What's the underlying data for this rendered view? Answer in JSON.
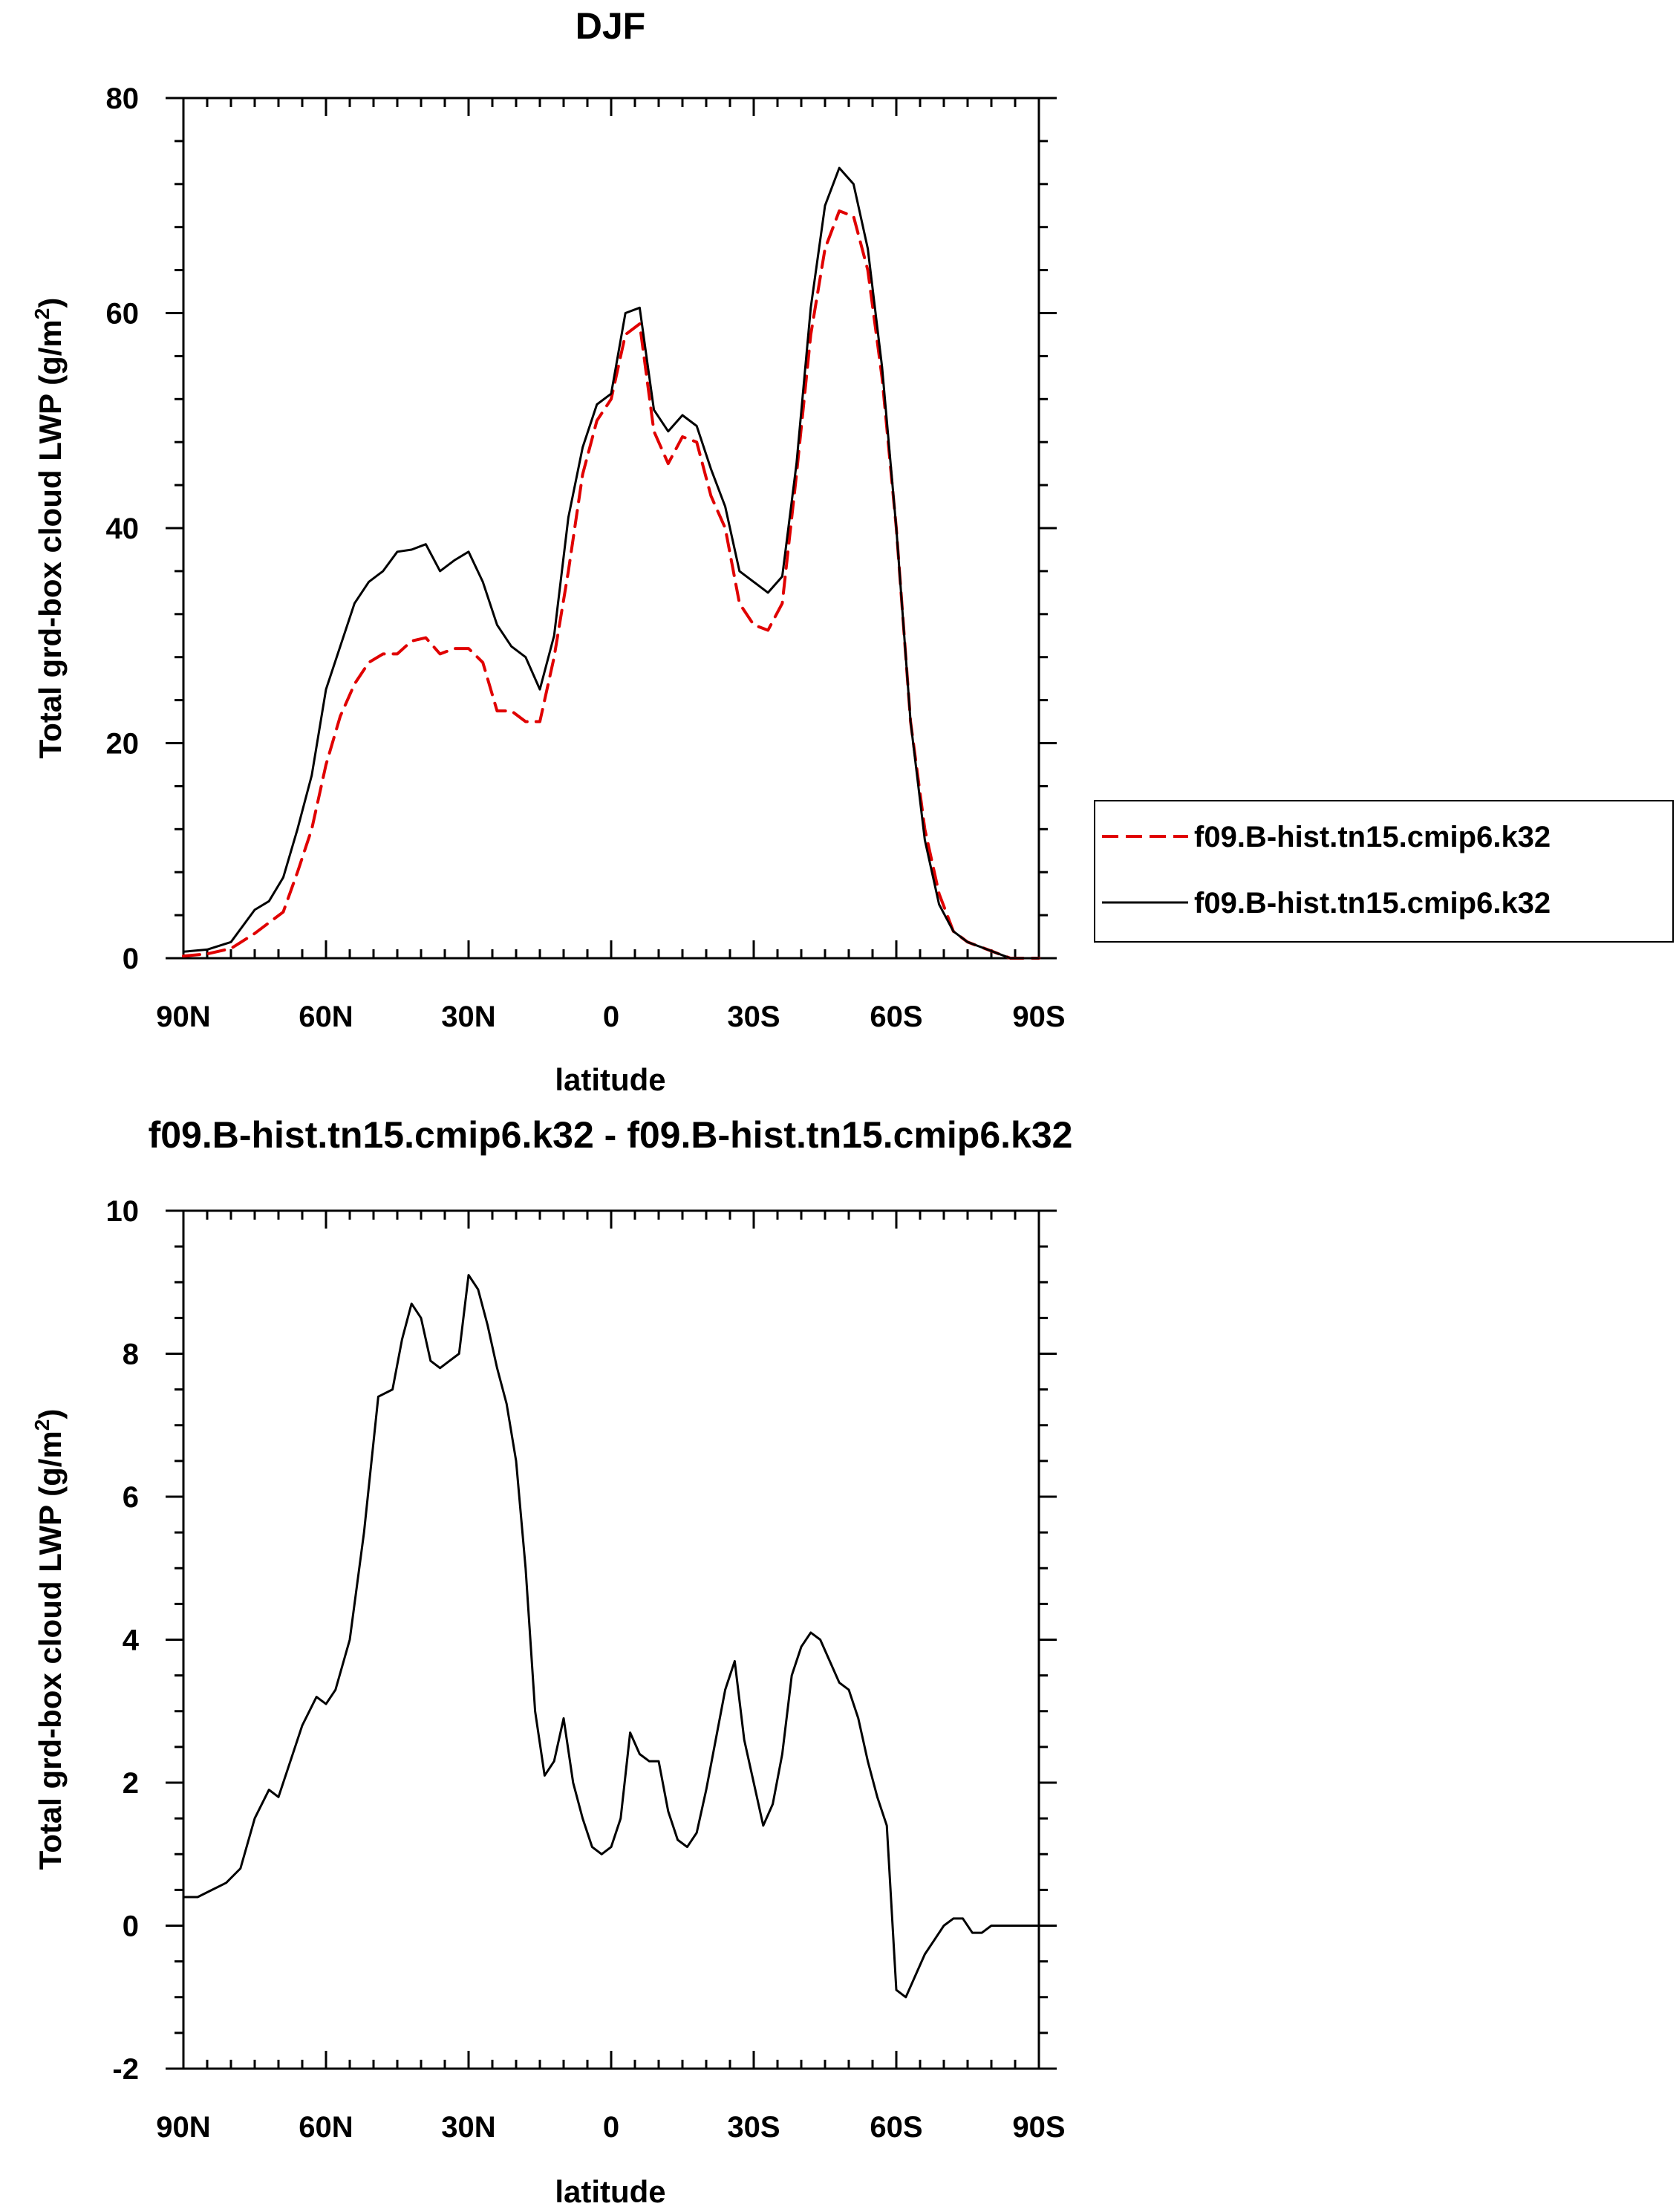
{
  "chart_data": [
    {
      "type": "line",
      "title": "DJF",
      "xlabel": "latitude",
      "ylabel": "Total grd-box cloud LWP (g/m",
      "ylabel_sup": "2",
      "ylabel_end": ")",
      "xlim": [
        90,
        -90
      ],
      "ylim": [
        0,
        80
      ],
      "x_tick_values": [
        90,
        60,
        30,
        0,
        -30,
        -60,
        -90
      ],
      "x_tick_labels": [
        "90N",
        "60N",
        "30N",
        "0",
        "30S",
        "60S",
        "90S"
      ],
      "y_tick_values": [
        0,
        20,
        40,
        60,
        80
      ],
      "y_tick_labels": [
        "0",
        "20",
        "40",
        "60",
        "80"
      ],
      "grid": false,
      "legend_position": "right",
      "x": [
        90,
        85,
        80,
        75,
        72,
        69,
        66,
        63,
        60,
        57,
        54,
        51,
        48,
        45,
        42,
        39,
        36,
        33,
        30,
        27,
        24,
        21,
        18,
        15,
        12,
        9,
        6,
        3,
        0,
        -3,
        -6,
        -9,
        -12,
        -15,
        -18,
        -21,
        -24,
        -27,
        -30,
        -33,
        -36,
        -39,
        -42,
        -45,
        -48,
        -51,
        -54,
        -57,
        -60,
        -63,
        -66,
        -69,
        -72,
        -75,
        -78,
        -81,
        -84,
        -87,
        -90
      ],
      "series": [
        {
          "name": "f09.B-hist.tn15.cmip6.k32",
          "color": "#e00000",
          "dash": "dashed",
          "values": [
            0.2,
            0.4,
            0.9,
            2.3,
            3.3,
            4.3,
            8.0,
            12.0,
            18.0,
            22.5,
            25.5,
            27.5,
            28.3,
            28.3,
            29.5,
            29.8,
            28.3,
            28.8,
            28.8,
            27.5,
            23.0,
            23.0,
            22.0,
            22.0,
            28.0,
            36.0,
            45.0,
            50.0,
            52.0,
            58.0,
            59.0,
            49.0,
            46.0,
            48.5,
            48.0,
            43.0,
            40.0,
            33.0,
            31.0,
            30.5,
            33.0,
            45.0,
            58.0,
            66.0,
            69.5,
            69.0,
            64.0,
            54.0,
            40.0,
            22.0,
            12.0,
            6.0,
            2.5,
            1.5,
            1.0,
            0.5,
            0.0,
            0.0,
            0.0
          ]
        },
        {
          "name": "f09.B-hist.tn15.cmip6.k32",
          "color": "#000000",
          "dash": "solid",
          "values": [
            0.6,
            0.8,
            1.5,
            4.5,
            5.3,
            7.5,
            12.0,
            17.0,
            25.0,
            29.0,
            33.0,
            35.0,
            36.0,
            37.8,
            38.0,
            38.5,
            36.0,
            37.0,
            37.8,
            35.0,
            31.0,
            29.0,
            28.0,
            25.0,
            30.0,
            41.0,
            47.5,
            51.5,
            52.5,
            60.0,
            60.5,
            51.0,
            49.0,
            50.5,
            49.5,
            45.5,
            42.0,
            36.0,
            35.0,
            34.0,
            35.5,
            46.0,
            60.5,
            70.0,
            73.5,
            72.0,
            66.0,
            55.0,
            40.0,
            22.0,
            11.0,
            5.0,
            2.5,
            1.5,
            1.0,
            0.5,
            0.0,
            0.0,
            0.0
          ]
        }
      ]
    },
    {
      "type": "line",
      "title": "f09.B-hist.tn15.cmip6.k32 - f09.B-hist.tn15.cmip6.k32",
      "xlabel": "latitude",
      "ylabel": "Total grd-box cloud LWP (g/m",
      "ylabel_sup": "2",
      "ylabel_end": ")",
      "xlim": [
        90,
        -90
      ],
      "ylim": [
        -2,
        10
      ],
      "x_tick_values": [
        90,
        60,
        30,
        0,
        -30,
        -60,
        -90
      ],
      "x_tick_labels": [
        "90N",
        "60N",
        "30N",
        "0",
        "30S",
        "60S",
        "90S"
      ],
      "y_tick_values": [
        -2,
        0,
        2,
        4,
        6,
        8,
        10
      ],
      "y_tick_labels": [
        "-2",
        "0",
        "2",
        "4",
        "6",
        "8",
        "10"
      ],
      "grid": false,
      "x": [
        90,
        87,
        84,
        81,
        78,
        75,
        72,
        70,
        68,
        65,
        62,
        60,
        58,
        55,
        52,
        49,
        46,
        44,
        42,
        40,
        38,
        36,
        34,
        32,
        30,
        28,
        26,
        24,
        22,
        20,
        18,
        16,
        14,
        12,
        10,
        8,
        6,
        4,
        2,
        0,
        -2,
        -4,
        -6,
        -8,
        -10,
        -12,
        -14,
        -16,
        -18,
        -20,
        -22,
        -24,
        -26,
        -28,
        -30,
        -32,
        -34,
        -36,
        -38,
        -40,
        -42,
        -44,
        -46,
        -48,
        -50,
        -52,
        -54,
        -56,
        -58,
        -60,
        -62,
        -64,
        -66,
        -68,
        -70,
        -72,
        -74,
        -76,
        -78,
        -80,
        -82,
        -84,
        -86,
        -88,
        -90
      ],
      "series": [
        {
          "name": "",
          "color": "#000000",
          "dash": "solid",
          "values": [
            0.4,
            0.4,
            0.5,
            0.6,
            0.8,
            1.5,
            1.9,
            1.8,
            2.2,
            2.8,
            3.2,
            3.1,
            3.3,
            4.0,
            5.5,
            7.4,
            7.5,
            8.2,
            8.7,
            8.5,
            7.9,
            7.8,
            7.9,
            8.0,
            9.1,
            8.9,
            8.4,
            7.8,
            7.3,
            6.5,
            5.0,
            3.0,
            2.1,
            2.3,
            2.9,
            2.0,
            1.5,
            1.1,
            1.0,
            1.1,
            1.5,
            2.7,
            2.4,
            2.3,
            2.3,
            1.6,
            1.2,
            1.1,
            1.3,
            1.9,
            2.6,
            3.3,
            3.7,
            2.6,
            2.0,
            1.4,
            1.7,
            2.4,
            3.5,
            3.9,
            4.1,
            4.0,
            3.7,
            3.4,
            3.3,
            2.9,
            2.3,
            1.8,
            1.4,
            -0.9,
            -1.0,
            -0.7,
            -0.4,
            -0.2,
            0.0,
            0.1,
            0.1,
            -0.1,
            -0.1,
            0.0,
            0.0,
            0.0,
            0.0,
            0.0,
            0.0
          ]
        }
      ]
    }
  ]
}
